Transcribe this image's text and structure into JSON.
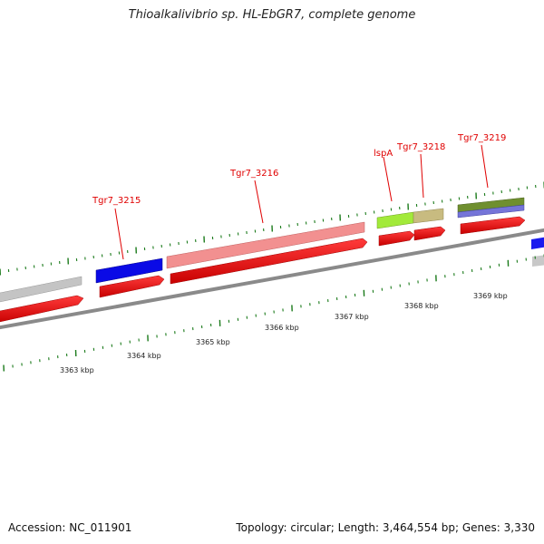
{
  "title": "Thioalkalivibrio sp. HL-EbGR7, complete genome",
  "footer": {
    "accession": "Accession: NC_011901",
    "topology": "Topology: circular; Length: 3,464,554 bp; Genes: 3,330"
  },
  "gene_labels": [
    {
      "name": "Tgr7_3215"
    },
    {
      "name": "Tgr7_3216"
    },
    {
      "name": "lspA"
    },
    {
      "name": "Tgr7_3218"
    },
    {
      "name": "Tgr7_3219"
    }
  ],
  "kbp_ticks": [
    {
      "label": "3363 kbp"
    },
    {
      "label": "3364 kbp"
    },
    {
      "label": "3365 kbp"
    },
    {
      "label": "3366 kbp"
    },
    {
      "label": "3367 kbp"
    },
    {
      "label": "3368 kbp"
    },
    {
      "label": "3369 kbp"
    }
  ],
  "colors": {
    "cds_red": "#ff0000",
    "backbone": "#8a8a8a",
    "tick_green": "#1a7a1a",
    "label_red": "#e00000",
    "feature_blue": "#0000ee",
    "feature_pink": "#f08a8a",
    "feature_lime": "#99e633",
    "feature_khaki": "#c4b77a",
    "feature_olive": "#6e8c2e",
    "feature_purple": "#7070d0",
    "feature_grey": "#c4c4c4"
  }
}
